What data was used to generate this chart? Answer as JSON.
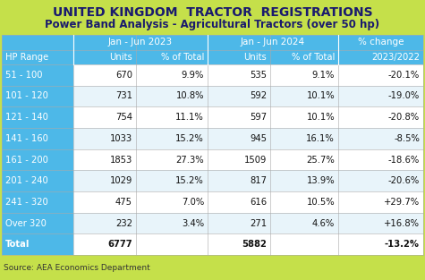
{
  "title": "UNITED KINGDOM  TRACTOR  REGISTRATIONS",
  "subtitle": "Power Band Analysis - Agricultural Tractors (over 50 hp)",
  "source": "Source: AEA Economics Department",
  "header_bg_color": "#c5e04a",
  "col_header_bg_color": "#4db8e8",
  "row_bg_odd": "#ffffff",
  "row_bg_even": "#e8f4fa",
  "hp_ranges": [
    "51 - 100",
    "101 - 120",
    "121 - 140",
    "141 - 160",
    "161 - 200",
    "201 - 240",
    "241 - 320",
    "Over 320",
    "Total"
  ],
  "units_2023": [
    "670",
    "731",
    "754",
    "1033",
    "1853",
    "1029",
    "475",
    "232",
    "6777"
  ],
  "pct_2023": [
    "9.9%",
    "10.8%",
    "11.1%",
    "15.2%",
    "27.3%",
    "15.2%",
    "7.0%",
    "3.4%",
    ""
  ],
  "units_2024": [
    "535",
    "592",
    "597",
    "945",
    "1509",
    "817",
    "616",
    "271",
    "5882"
  ],
  "pct_2024": [
    "9.1%",
    "10.1%",
    "10.1%",
    "16.1%",
    "25.7%",
    "13.9%",
    "10.5%",
    "4.6%",
    ""
  ],
  "pct_change": [
    "-20.1%",
    "-19.0%",
    "-20.8%",
    "-8.5%",
    "-18.6%",
    "-20.6%",
    "+29.7%",
    "+16.8%",
    "-13.2%"
  ],
  "col_header_group1": "Jan - Jun 2023",
  "col_header_group2": "Jan - Jun 2024",
  "col_header_group3": "% change",
  "col_sub1": "Units",
  "col_sub2": "% of Total",
  "col_sub3": "Units",
  "col_sub4": "% of Total",
  "col_sub5": "2023/2022",
  "col_label": "HP Range",
  "text_dark": "#1a1a6e",
  "text_black": "#111111",
  "text_white": "#ffffff"
}
